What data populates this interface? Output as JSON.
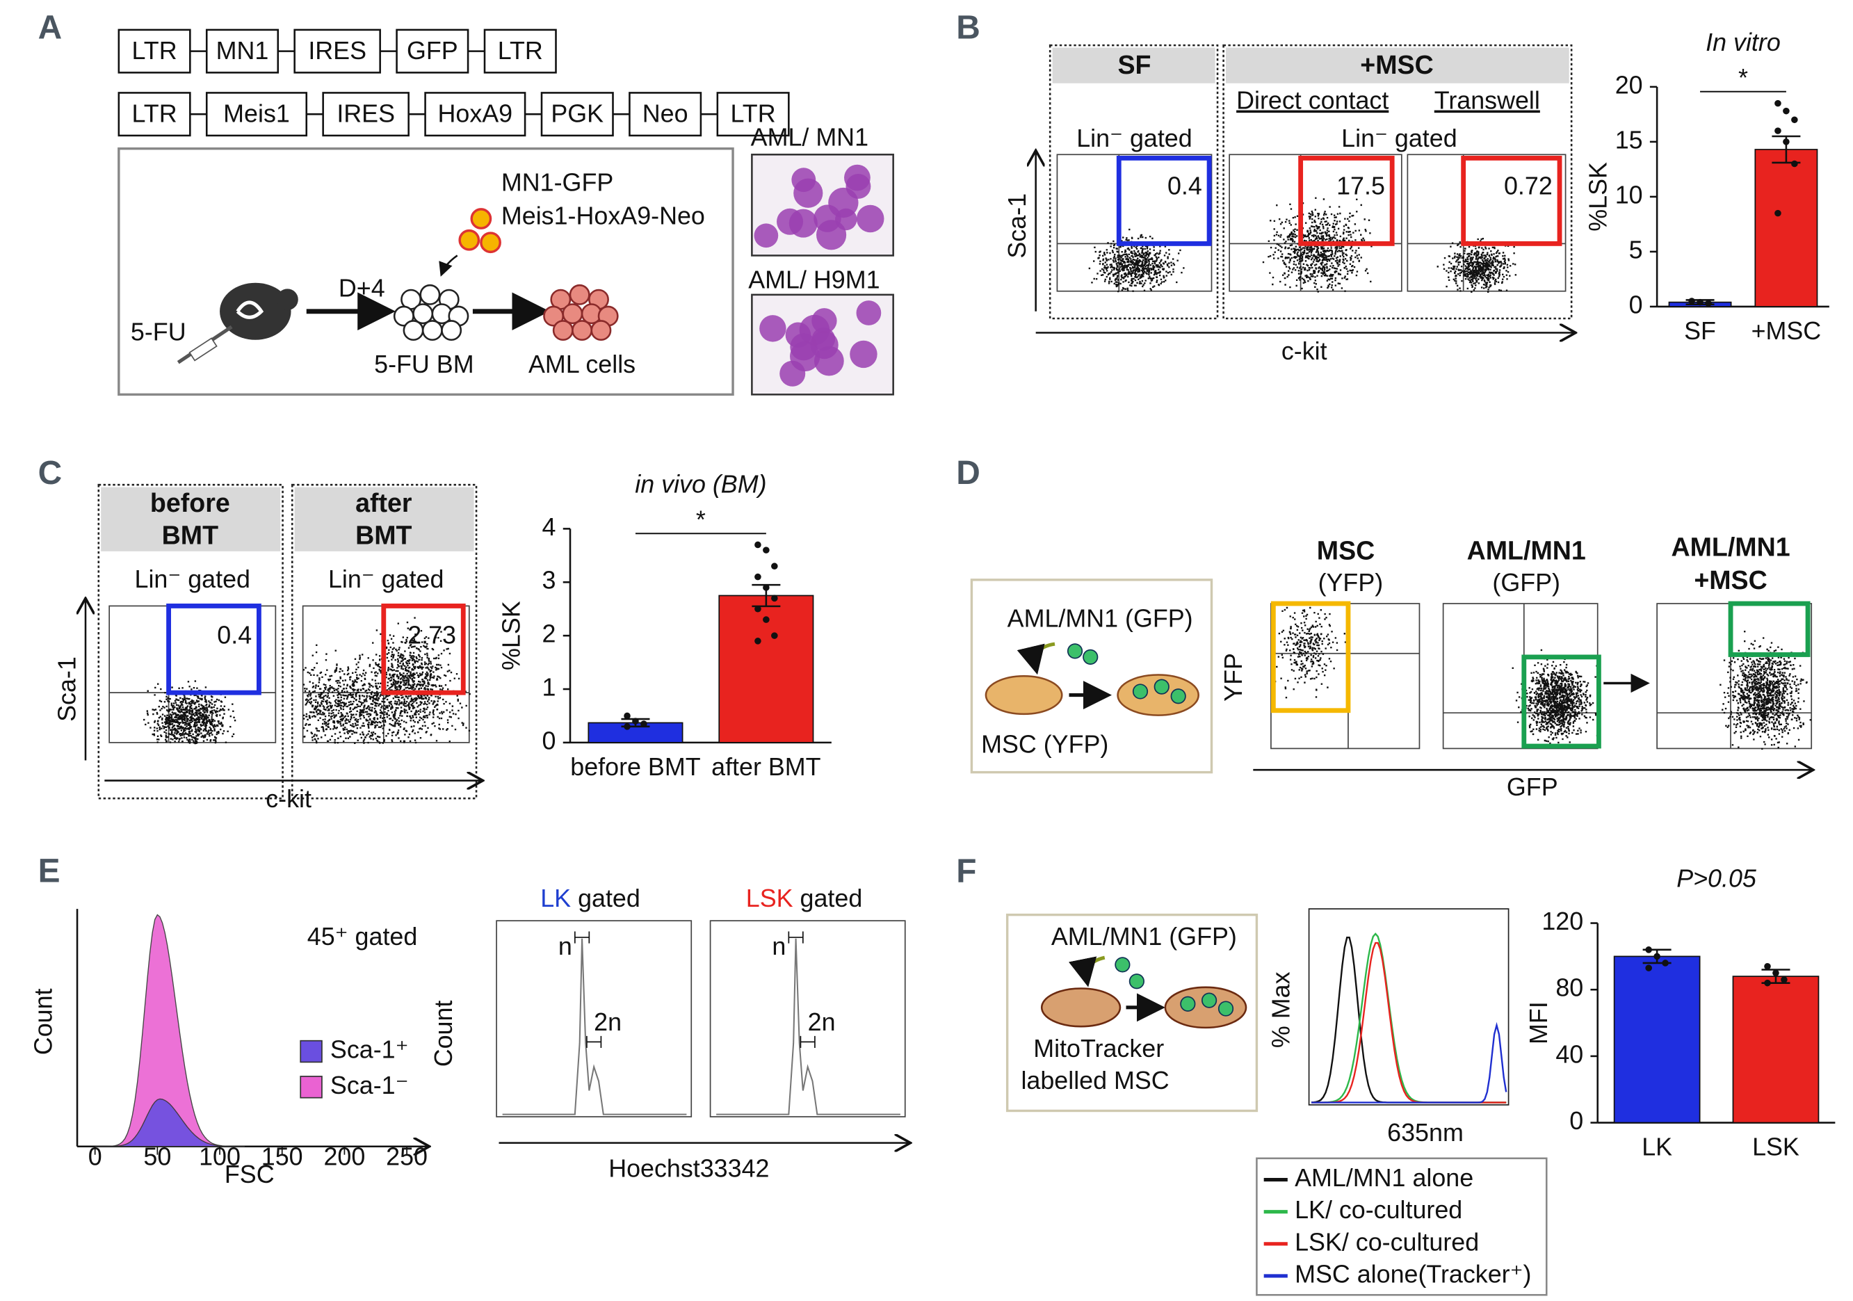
{
  "figure": {
    "panel_labels": [
      "A",
      "B",
      "C",
      "D",
      "E",
      "F"
    ]
  },
  "panel_a": {
    "construct1": [
      "LTR",
      "MN1",
      "IRES",
      "GFP",
      "LTR"
    ],
    "construct2": [
      "LTR",
      "Meis1",
      "IRES",
      "HoxA9",
      "PGK",
      "Neo",
      "LTR"
    ],
    "vectors": [
      "MN1-GFP",
      "Meis1-HoxA9-Neo"
    ],
    "step": "D+4",
    "drug": "5-FU",
    "stages": [
      "5-FU BM",
      "AML cells"
    ],
    "images": [
      "AML/ MN1",
      "AML/ H9M1"
    ]
  },
  "panel_b": {
    "headers": [
      "SF",
      "+MSC"
    ],
    "conditions": [
      "Direct contact",
      "Transwell"
    ],
    "gate": "Lin⁻ gated",
    "percentages": [
      0.4,
      17.5,
      0.72
    ],
    "y_axis": "Sca-1",
    "x_axis": "c-kit",
    "gate_colors": [
      "#1f2fe0",
      "#e8231f",
      "#e8231f"
    ]
  },
  "panel_c": {
    "headers": [
      [
        "before",
        "BMT"
      ],
      [
        "after",
        "BMT"
      ]
    ],
    "gate": "Lin⁻ gated",
    "percentages": [
      0.4,
      2.73
    ],
    "y_axis": "Sca-1",
    "x_axis": "c-kit",
    "gate_colors": [
      "#1f2fe0",
      "#e8231f"
    ]
  },
  "panel_d": {
    "diagram": [
      "AML/MN1 (GFP)",
      "MSC (YFP)"
    ],
    "headers": [
      [
        "MSC",
        "(YFP)"
      ],
      [
        "AML/MN1",
        "(GFP)"
      ],
      [
        "AML/MN1",
        "+MSC"
      ]
    ],
    "y_axis": "YFP",
    "x_axis": "GFP",
    "gate_colors": [
      "#f5b800",
      "#1aa050",
      "#1aa050"
    ]
  },
  "panel_e": {
    "gate": "45⁺ gated",
    "legend": [
      {
        "name": "Sca-1⁺",
        "color": "#6a4fe0"
      },
      {
        "name": "Sca-1⁻",
        "color": "#ea62d2"
      }
    ],
    "y_axis": "Count",
    "x_axis": "FSC",
    "fsc_ticks": [
      0,
      50,
      100,
      150,
      200,
      250
    ],
    "cycle_panels": [
      {
        "population": "LK",
        "color": "#1f3fd0",
        "label": "gated"
      },
      {
        "population": "LSK",
        "color": "#e8231f",
        "label": "gated"
      }
    ],
    "cycle_y_axis": "Count",
    "cycle_x_axis": "Hoechst33342",
    "peaks": [
      "n",
      "2n"
    ]
  },
  "panel_f": {
    "diagram": [
      "AML/MN1 (GFP)",
      "MitoTracker",
      "labelled MSC"
    ],
    "y_axis": "% Max",
    "x_axis": "635nm",
    "legend": [
      {
        "name": "AML/MN1 alone",
        "color": "#111111"
      },
      {
        "name": "LK/ co-cultured",
        "color": "#2db84a"
      },
      {
        "name": "LSK/ co-cultured",
        "color": "#e8231f"
      },
      {
        "name": "MSC alone(Tracker⁺)",
        "color": "#1f2fd0"
      }
    ]
  },
  "chart_data": [
    {
      "type": "bar",
      "title": "In vitro",
      "y_label": "%LSK",
      "categories": [
        "SF",
        "+MSC"
      ],
      "values": [
        0.4,
        14.3
      ],
      "error": [
        0.2,
        1.2
      ],
      "points": [
        [
          0.5,
          0.4,
          0.3
        ],
        [
          18.5,
          17.8,
          17.0,
          16.0,
          15.0,
          13.0,
          8.5
        ]
      ],
      "colors": [
        "#1f2fe0",
        "#e8231f"
      ],
      "ylim": [
        0,
        20
      ],
      "yticks": [
        0,
        5,
        10,
        15,
        20
      ],
      "significance": "*"
    },
    {
      "type": "bar",
      "title": "in vivo (BM)",
      "y_label": "%LSK",
      "categories": [
        "before BMT",
        "after BMT"
      ],
      "values": [
        0.37,
        2.75
      ],
      "error": [
        0.07,
        0.2
      ],
      "points": [
        [
          0.5,
          0.4,
          0.35,
          0.3
        ],
        [
          3.7,
          3.6,
          3.3,
          3.1,
          2.9,
          2.7,
          2.5,
          2.3,
          2.0,
          1.9
        ]
      ],
      "colors": [
        "#1f2fe0",
        "#e8231f"
      ],
      "ylim": [
        0,
        4
      ],
      "yticks": [
        0,
        1,
        2,
        3,
        4
      ],
      "significance": "*"
    },
    {
      "type": "bar",
      "title": "P>0.05",
      "y_label": "MFI",
      "categories": [
        "LK",
        "LSK"
      ],
      "values": [
        100,
        88
      ],
      "error": [
        4,
        4
      ],
      "points": [
        [
          104,
          100,
          96,
          93
        ],
        [
          94,
          90,
          86,
          84
        ]
      ],
      "colors": [
        "#1f2fe0",
        "#e8231f"
      ],
      "ylim": [
        0,
        120
      ],
      "yticks": [
        0,
        40,
        80,
        120
      ]
    }
  ]
}
